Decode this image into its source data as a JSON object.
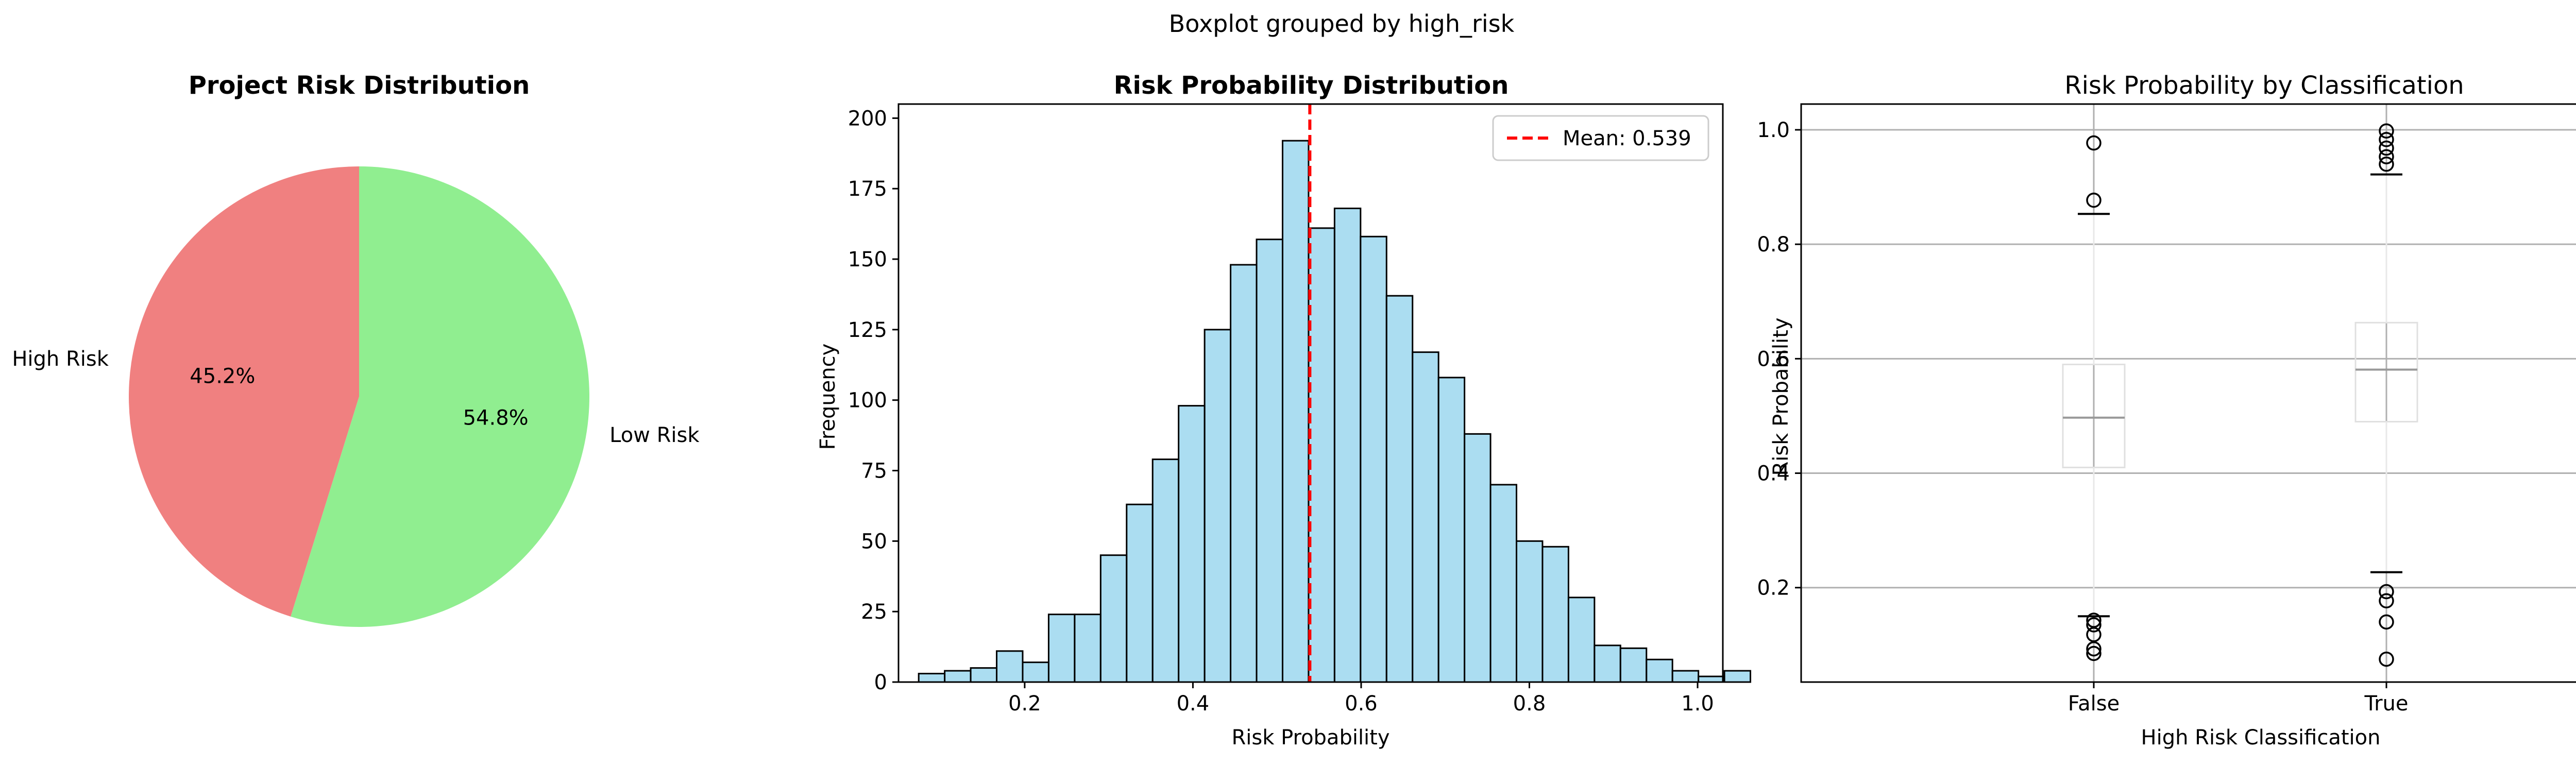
{
  "figure": {
    "suptitle": "Boxplot grouped by high_risk"
  },
  "chart_data": [
    {
      "type": "pie",
      "title": "Project Risk Distribution",
      "labels": [
        "High Risk",
        "Low Risk"
      ],
      "values": [
        45.2,
        54.8
      ],
      "autopct": [
        "45.2%",
        "54.8%"
      ],
      "colors": [
        "#f08080",
        "#90ee90"
      ],
      "startangle": 90
    },
    {
      "type": "bar",
      "subtype": "histogram",
      "title": "Risk Probability Distribution",
      "xlabel": "Risk Probability",
      "ylabel": "Frequency",
      "xlim": [
        0.05,
        1.03
      ],
      "ylim": [
        0,
        205
      ],
      "xticks": [
        0.2,
        0.4,
        0.6,
        0.8,
        1.0
      ],
      "xtick_labels": [
        "0.2",
        "0.4",
        "0.6",
        "0.8",
        "1.0"
      ],
      "yticks": [
        0,
        25,
        50,
        75,
        100,
        125,
        150,
        175,
        200
      ],
      "ytick_labels": [
        "0",
        "25",
        "50",
        "75",
        "100",
        "125",
        "150",
        "175",
        "200"
      ],
      "bin_start": 0.074,
      "bin_width": 0.0309,
      "counts": [
        3,
        4,
        5,
        11,
        7,
        24,
        24,
        45,
        63,
        79,
        98,
        125,
        148,
        157,
        192,
        161,
        168,
        158,
        137,
        117,
        108,
        88,
        70,
        50,
        48,
        30,
        13,
        12,
        8,
        4,
        2,
        4
      ],
      "bar_color": "#87ceeb",
      "mean_line": {
        "value": 0.539,
        "label": "Mean: 0.539",
        "color": "#ff0000"
      },
      "legend": "top-right"
    },
    {
      "type": "boxplot",
      "title": "Risk Probability by Classification",
      "xlabel": "High Risk Classification",
      "ylabel": "Risk Probability",
      "ylim": [
        0.035,
        1.045
      ],
      "yticks": [
        0.2,
        0.4,
        0.6,
        0.8,
        1.0
      ],
      "ytick_labels": [
        "0.2",
        "0.4",
        "0.6",
        "0.8",
        "1.0"
      ],
      "grid": true,
      "groups": [
        {
          "name": "False",
          "whisker_low": 0.15,
          "q1": 0.41,
          "median": 0.497,
          "q3": 0.59,
          "whisker_high": 0.853,
          "outliers": [
            0.977,
            0.877,
            0.143,
            0.135,
            0.118,
            0.093,
            0.085
          ]
        },
        {
          "name": "True",
          "whisker_low": 0.227,
          "q1": 0.49,
          "median": 0.581,
          "q3": 0.663,
          "whisker_high": 0.922,
          "outliers": [
            0.998,
            0.983,
            0.968,
            0.953,
            0.94,
            0.193,
            0.177,
            0.14,
            0.075
          ]
        }
      ]
    }
  ]
}
